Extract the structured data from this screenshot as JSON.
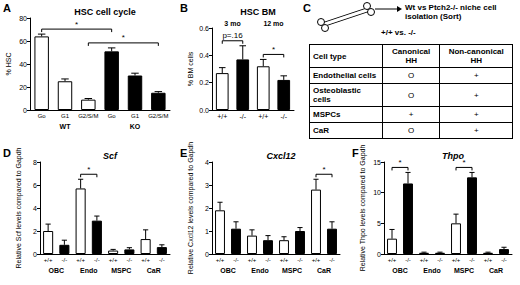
{
  "chart_data": [
    {
      "panel": "A",
      "type": "bar",
      "title": "HSC cell cycle",
      "ylabel": "% HSC",
      "categories": [
        "Go",
        "G1",
        "G2/S/M",
        "Go",
        "G1",
        "G2/S/M"
      ],
      "groups": [
        "WT",
        "KO"
      ],
      "values": [
        64,
        25,
        9,
        51,
        30,
        15
      ],
      "errors": [
        2,
        2,
        1,
        3,
        2,
        1
      ],
      "colors": [
        "#ffffff",
        "#ffffff",
        "#ffffff",
        "#000000",
        "#000000",
        "#000000"
      ],
      "ylim": [
        0,
        80
      ],
      "yticks": [
        0,
        20,
        40,
        60,
        80
      ],
      "grid": false,
      "brackets": [
        {
          "label": "*",
          "from": 0,
          "to": 3
        },
        {
          "label": "*",
          "from": 2,
          "to": 5
        }
      ]
    },
    {
      "panel": "B",
      "type": "bar",
      "title": "HSC BM",
      "ylabel": "% BM cells",
      "categories": [
        "+/+",
        "-/-",
        "+/+",
        "-/-"
      ],
      "groups": [
        "3 mo",
        "12 mo"
      ],
      "values": [
        0.27,
        0.37,
        0.32,
        0.22
      ],
      "errors": [
        0.04,
        0.1,
        0.05,
        0.03
      ],
      "colors": [
        "#ffffff",
        "#000000",
        "#ffffff",
        "#000000"
      ],
      "ylim": [
        0,
        0.6
      ],
      "yticks": [
        {
          "value": 0,
          "label": "0.0"
        },
        {
          "value": 0.2,
          "label": "0.2"
        },
        {
          "value": 0.4,
          "label": "0.4"
        },
        {
          "value": 0.6,
          "label": "0.6"
        }
      ],
      "grid": false,
      "brackets": [
        {
          "label": "p=.16",
          "from": 0,
          "to": 1
        },
        {
          "label": "*",
          "from": 2,
          "to": 3
        }
      ]
    },
    {
      "panel": "D",
      "type": "bar",
      "title": "Scf",
      "ylabel": "Relative Scf levels compared to Gapdh",
      "categories": [
        "+/+",
        "-/-",
        "+/+",
        "-/-",
        "+/+",
        "-/-",
        "+/+",
        "-/-"
      ],
      "groups": [
        "OBC",
        "Endo",
        "MSPC",
        "CaR"
      ],
      "values": [
        2.0,
        0.8,
        5.7,
        2.9,
        0.3,
        0.4,
        1.3,
        0.6
      ],
      "errors": [
        0.6,
        0.4,
        0.8,
        0.4,
        0.1,
        0.15,
        0.8,
        0.2
      ],
      "colors": [
        "#ffffff",
        "#000000",
        "#ffffff",
        "#000000",
        "#ffffff",
        "#000000",
        "#ffffff",
        "#000000"
      ],
      "ylim": [
        0,
        8
      ],
      "yticks": [
        0,
        2,
        4,
        6,
        8
      ],
      "grid": false,
      "brackets": [
        {
          "label": "*",
          "from": 2,
          "to": 3
        }
      ]
    },
    {
      "panel": "E",
      "type": "bar",
      "title": "Cxcl12",
      "ylabel": "Relative Cxcl12 levels compared to Gapdh",
      "categories": [
        "+/+",
        "-/-",
        "+/+",
        "-/-",
        "+/+",
        "-/-",
        "+/+",
        "-/-"
      ],
      "groups": [
        "OBC",
        "Endo",
        "MSPC",
        "CaR"
      ],
      "values": [
        1.9,
        1.1,
        0.8,
        0.6,
        0.6,
        1.0,
        2.8,
        1.1
      ],
      "errors": [
        0.35,
        0.3,
        0.25,
        0.2,
        0.15,
        0.15,
        0.45,
        0.3
      ],
      "colors": [
        "#ffffff",
        "#000000",
        "#ffffff",
        "#000000",
        "#ffffff",
        "#000000",
        "#ffffff",
        "#000000"
      ],
      "ylim": [
        0,
        4
      ],
      "yticks": [
        0,
        1,
        2,
        3,
        4
      ],
      "grid": false,
      "brackets": [
        {
          "label": "*",
          "from": 6,
          "to": 7
        }
      ]
    },
    {
      "panel": "F",
      "type": "bar",
      "title": "Thpo",
      "ylabel": "Relative Thpo levels compared to Gapdh",
      "categories": [
        "+/+",
        "-/-",
        "+/+",
        "-/-",
        "+/+",
        "-/-",
        "+/+",
        "-/-"
      ],
      "groups": [
        "OBC",
        "Endo",
        "MSPC",
        "CaR"
      ],
      "values": [
        2.5,
        11.5,
        0.2,
        0.2,
        5.0,
        12.5,
        0.2,
        0.8
      ],
      "errors": [
        1.5,
        1.8,
        0.1,
        0.1,
        1.5,
        0.8,
        0.1,
        0.3
      ],
      "colors": [
        "#ffffff",
        "#000000",
        "#ffffff",
        "#000000",
        "#ffffff",
        "#000000",
        "#ffffff",
        "#000000"
      ],
      "ylim": [
        0,
        15
      ],
      "yticks": [
        0,
        5,
        10,
        15
      ],
      "grid": false,
      "brackets": [
        {
          "label": "*",
          "from": 0,
          "to": 1
        },
        {
          "label": "*",
          "from": 4,
          "to": 5
        }
      ]
    }
  ],
  "diagram": {
    "panel": "C",
    "comparison": "+/+ vs. -/-",
    "caption": "Wt vs Ptch2-/- niche cell isolation (Sort)",
    "table": {
      "header": [
        "Cell type",
        "Canonical HH",
        "Non-canonical HH"
      ],
      "rows": [
        [
          "Endothelial cells",
          "O",
          "+"
        ],
        [
          "Osteoblastic cells",
          "O",
          "+"
        ],
        [
          "MSPCs",
          "+",
          "+"
        ],
        [
          "CaR",
          "O",
          "+"
        ]
      ]
    }
  }
}
